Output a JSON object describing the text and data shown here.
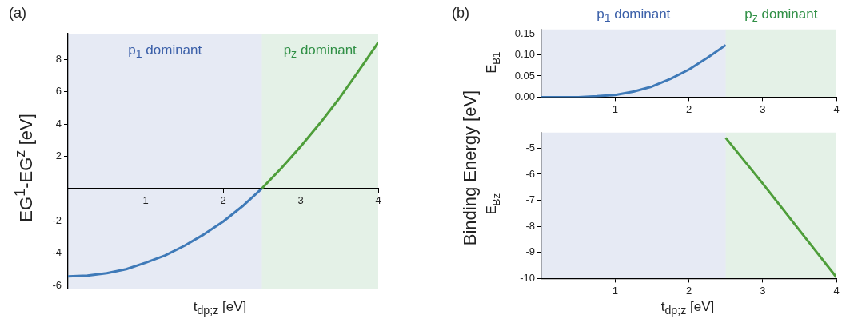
{
  "chart_data": [
    {
      "type": "line",
      "annotations": [
        "(a)"
      ],
      "xlabel": "t$_{dp;z}$ [eV]",
      "ylabel": "EG$^{1}$-EG$^{z}$ [eV]",
      "xlim": [
        0,
        4
      ],
      "xticks": [
        1,
        2,
        3,
        4
      ],
      "ylim": [
        -6.2,
        9.6
      ],
      "yticks": [
        -6,
        -4,
        -2,
        2,
        4,
        6,
        8
      ],
      "marker": "none",
      "bands": [
        {
          "axis": "x",
          "from": 0,
          "to": 2.5,
          "label": "p$_{1}$ dominant",
          "color": "#3a5fa8"
        },
        {
          "axis": "x",
          "from": 2.5,
          "to": 4,
          "label": "p$_{z}$ dominant",
          "color": "#2f8f45"
        }
      ],
      "series": [
        {
          "color": "#3f7ab8",
          "x": [
            0,
            0.25,
            0.5,
            0.75,
            1,
            1.25,
            1.5,
            1.75,
            2,
            2.25,
            2.5
          ],
          "values": [
            -5.45,
            -5.4,
            -5.25,
            -5.0,
            -4.6,
            -4.15,
            -3.55,
            -2.85,
            -2.05,
            -1.1,
            0
          ]
        },
        {
          "color": "#4e9e3a",
          "x": [
            2.5,
            2.75,
            3,
            3.25,
            3.5,
            3.75,
            4
          ],
          "values": [
            0,
            1.25,
            2.6,
            4.05,
            5.6,
            7.3,
            9.05
          ]
        }
      ]
    },
    {
      "type": "line",
      "annotations": [
        "(b)",
        "Binding Energy [eV]"
      ],
      "ylabel": "E$_{B1}$",
      "xlim": [
        0,
        4
      ],
      "xticks": [
        1,
        2,
        3,
        4
      ],
      "ylim": [
        0,
        0.16
      ],
      "yticks": [
        {
          "value": 0,
          "label": "0.00"
        },
        {
          "value": 0.05,
          "label": "0.05"
        },
        {
          "value": 0.1,
          "label": "0.10"
        },
        {
          "value": 0.15,
          "label": "0.15"
        }
      ],
      "marker": "none",
      "bands": [
        {
          "axis": "x",
          "from": 0,
          "to": 2.5,
          "label": "p$_{1}$ dominant",
          "color": "#3a5fa8"
        },
        {
          "axis": "x",
          "from": 2.5,
          "to": 4,
          "label": "p$_{z}$ dominant",
          "color": "#2f8f45"
        }
      ],
      "series": [
        {
          "color": "#3f7ab8",
          "x": [
            0,
            0.25,
            0.5,
            0.75,
            1,
            1.25,
            1.5,
            1.75,
            2,
            2.25,
            2.5
          ],
          "values": [
            0,
            0,
            0,
            0.002,
            0.005,
            0.013,
            0.025,
            0.043,
            0.065,
            0.093,
            0.123
          ]
        }
      ]
    },
    {
      "type": "line",
      "xlabel": "t$_{dp;z}$ [eV]",
      "ylabel": "E$_{Bz}$",
      "xlim": [
        0,
        4
      ],
      "xticks": [
        1,
        2,
        3,
        4
      ],
      "ylim": [
        -10,
        -4.4
      ],
      "yticks": [
        -10,
        -9,
        -8,
        -7,
        -6,
        -5
      ],
      "marker": "none",
      "bands": [
        {
          "axis": "x",
          "from": 0,
          "to": 2.5,
          "color": "#3a5fa8"
        },
        {
          "axis": "x",
          "from": 2.5,
          "to": 4,
          "color": "#2f8f45"
        }
      ],
      "series": [
        {
          "color": "#4e9e3a",
          "x": [
            2.5,
            3,
            3.5,
            4
          ],
          "values": [
            -4.6,
            -6.35,
            -8.15,
            -9.95
          ]
        }
      ]
    }
  ]
}
